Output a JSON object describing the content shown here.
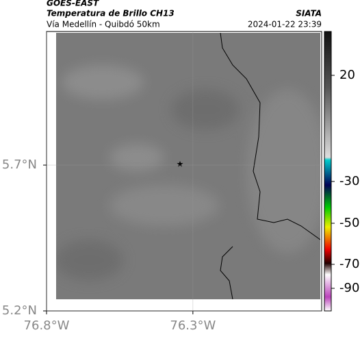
{
  "header": {
    "title": "GOES-EAST",
    "subtitle": "Temperatura de Brillo CH13",
    "region": "Vía Medellín - Quibdó 50km",
    "source": "SIATA",
    "datetime": "2024-01-22 23:39"
  },
  "map": {
    "lonlim": [
      -76.8,
      -75.86
    ],
    "latlim": [
      5.2,
      6.158
    ],
    "xticks": [
      {
        "value": -76.8,
        "label": "76.8°W"
      },
      {
        "value": -76.3,
        "label": "76.3°W"
      }
    ],
    "yticks": [
      {
        "value": 5.2,
        "label": "5.2°N"
      },
      {
        "value": 5.7,
        "label": "5.7°N"
      }
    ]
  },
  "colorbar": {
    "ticks": [
      20,
      -30,
      -50,
      -70,
      -90
    ]
  }
}
